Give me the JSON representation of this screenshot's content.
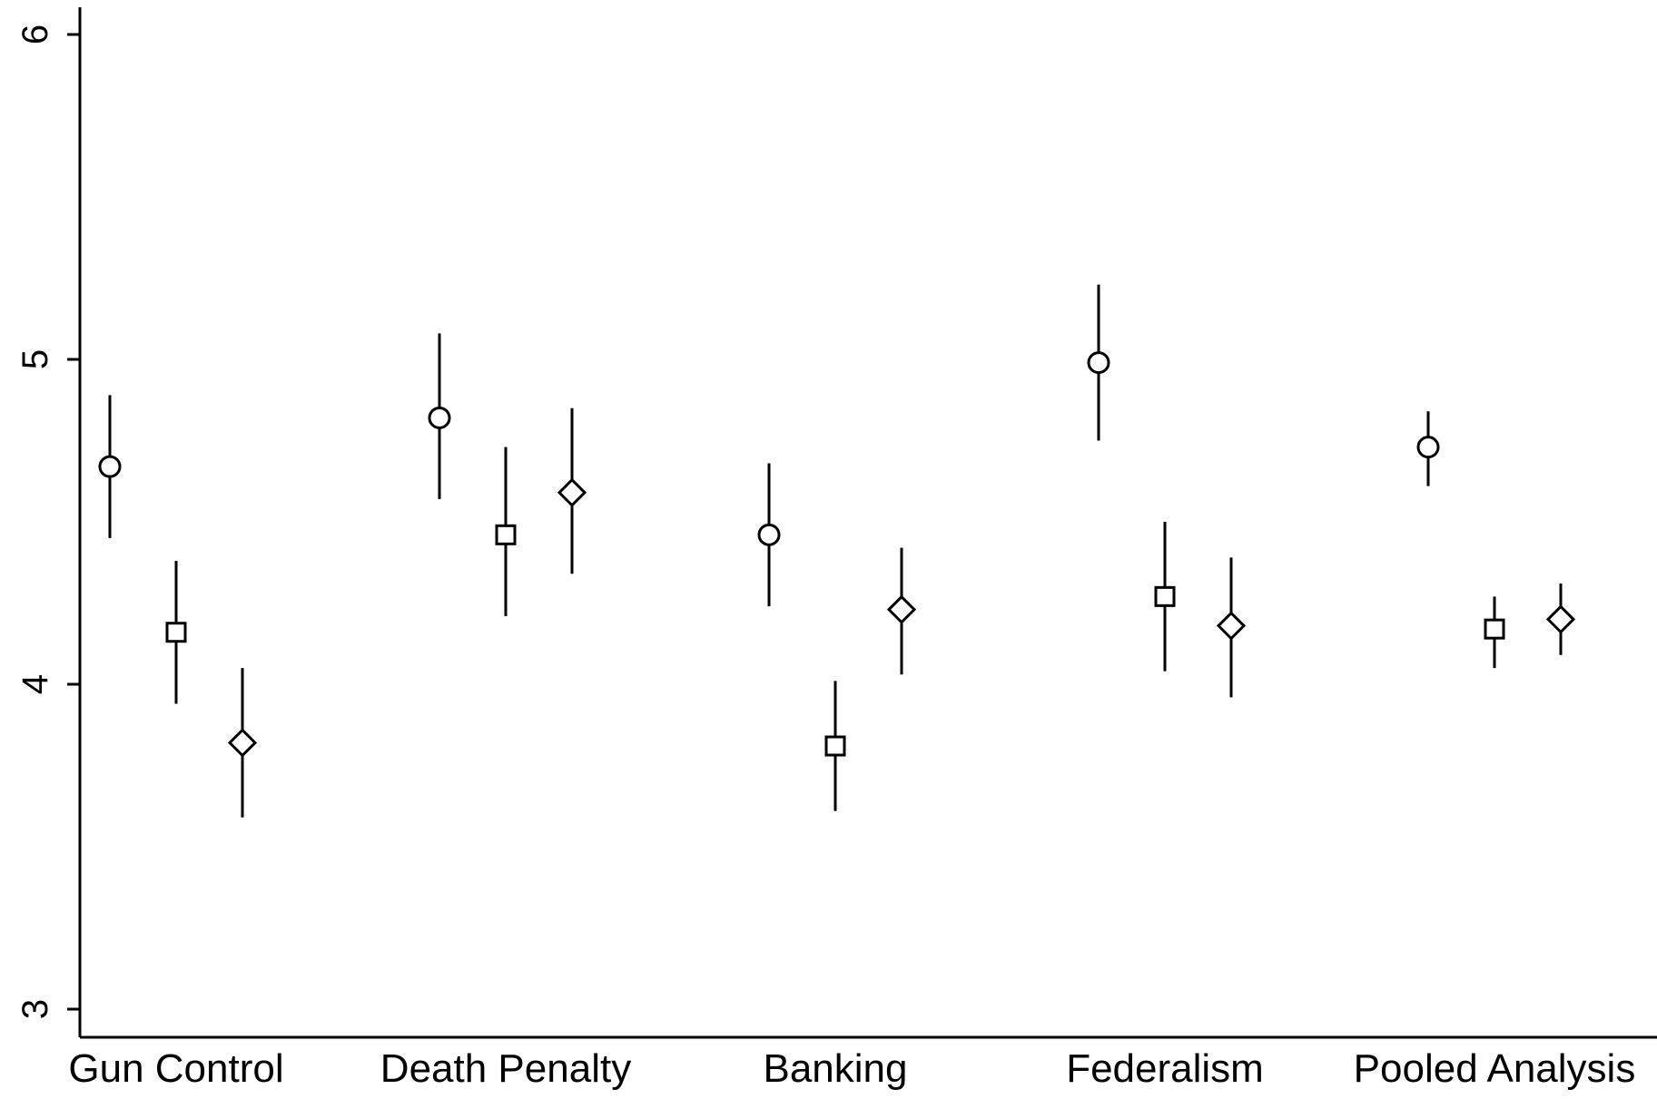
{
  "chart_data": {
    "type": "scatter",
    "title": "",
    "xlabel": "",
    "ylabel": "",
    "ylim": [
      3,
      6
    ],
    "yticks": [
      3,
      4,
      5,
      6
    ],
    "categories": [
      "Gun Control",
      "Death Penalty",
      "Banking",
      "Federalism",
      "Pooled Analysis"
    ],
    "grid": false,
    "legend": "none",
    "series": [
      {
        "marker": "circle",
        "values": [
          4.67,
          4.82,
          4.46,
          4.99,
          4.73
        ],
        "lower": [
          4.45,
          4.57,
          4.24,
          4.75,
          4.61
        ],
        "upper": [
          4.89,
          5.08,
          4.68,
          5.23,
          4.84
        ]
      },
      {
        "marker": "square",
        "values": [
          4.16,
          4.46,
          3.81,
          4.27,
          4.17
        ],
        "lower": [
          3.94,
          4.21,
          3.61,
          4.04,
          4.05
        ],
        "upper": [
          4.38,
          4.73,
          4.01,
          4.5,
          4.27
        ]
      },
      {
        "marker": "diamond",
        "values": [
          3.82,
          4.59,
          4.23,
          4.18,
          4.2
        ],
        "lower": [
          3.59,
          4.34,
          4.03,
          3.96,
          4.09
        ],
        "upper": [
          4.05,
          4.85,
          4.42,
          4.39,
          4.31
        ]
      }
    ],
    "colors": {
      "marks": "#000000",
      "background": "#ffffff"
    }
  }
}
